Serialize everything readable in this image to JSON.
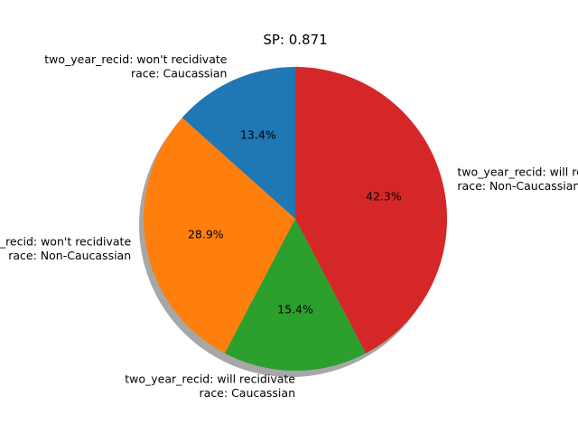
{
  "chart_data": {
    "type": "pie",
    "title": "SP: 0.871",
    "slices": [
      {
        "label_lines": [
          "two_year_recid: won't recidivate",
          "race: Caucassian"
        ],
        "value": 13.4,
        "pct_label": "13.4%",
        "color": "#1f77b4"
      },
      {
        "label_lines": [
          "two_year_recid: won't recidivate",
          "race: Non-Caucassian"
        ],
        "value": 28.9,
        "pct_label": "28.9%",
        "color": "#ff7f0e"
      },
      {
        "label_lines": [
          "two_year_recid: will recidivate",
          "race: Caucassian"
        ],
        "value": 15.4,
        "pct_label": "15.4%",
        "color": "#2ca02c"
      },
      {
        "label_lines": [
          "two_year_recid: will recidivate",
          "race: Non-Caucassian"
        ],
        "value": 42.3,
        "pct_label": "42.3%",
        "color": "#d62728"
      }
    ],
    "start_angle": 90,
    "direction": "counterclockwise",
    "shadow": true,
    "legend": "none"
  }
}
